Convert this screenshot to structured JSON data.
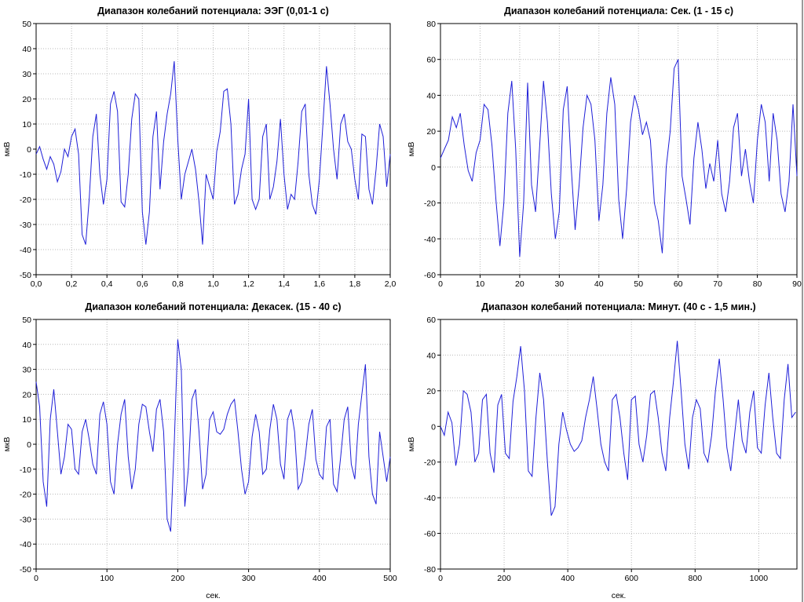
{
  "chart_data": [
    {
      "type": "line",
      "title": "Диапазон колебаний потенциала: ЭЭГ (0,01-1 с)",
      "ylabel": "мкВ",
      "xlabel": "",
      "xlim": [
        0,
        2.0
      ],
      "ylim": [
        -50,
        50
      ],
      "grid": true,
      "x_ticks": [
        "0,0",
        "0,2",
        "0,4",
        "0,6",
        "0,8",
        "1,0",
        "1,2",
        "1,4",
        "1,6",
        "1,8",
        "2,0"
      ],
      "y_ticks": [
        "-50",
        "-40",
        "-30",
        "-20",
        "-10",
        "0",
        "10",
        "20",
        "30",
        "40",
        "50"
      ],
      "series": [
        {
          "color": "#1f1fd8",
          "x": [
            0.0,
            0.02,
            0.04,
            0.06,
            0.08,
            0.1,
            0.12,
            0.14,
            0.16,
            0.18,
            0.2,
            0.22,
            0.24,
            0.26,
            0.28,
            0.3,
            0.32,
            0.34,
            0.36,
            0.38,
            0.4,
            0.42,
            0.44,
            0.46,
            0.48,
            0.5,
            0.52,
            0.54,
            0.56,
            0.58,
            0.6,
            0.62,
            0.64,
            0.66,
            0.68,
            0.7,
            0.72,
            0.74,
            0.76,
            0.78,
            0.8,
            0.82,
            0.84,
            0.86,
            0.88,
            0.9,
            0.92,
            0.94,
            0.96,
            0.98,
            1.0,
            1.02,
            1.04,
            1.06,
            1.08,
            1.1,
            1.12,
            1.14,
            1.16,
            1.18,
            1.2,
            1.22,
            1.24,
            1.26,
            1.28,
            1.3,
            1.32,
            1.34,
            1.36,
            1.38,
            1.4,
            1.42,
            1.44,
            1.46,
            1.48,
            1.5,
            1.52,
            1.54,
            1.56,
            1.58,
            1.6,
            1.62,
            1.64,
            1.66,
            1.68,
            1.7,
            1.72,
            1.74,
            1.76,
            1.78,
            1.8,
            1.82,
            1.84,
            1.86,
            1.88,
            1.9,
            1.92,
            1.94,
            1.96,
            1.98,
            2.0
          ],
          "values": [
            -2,
            1,
            -4,
            -8,
            -3,
            -6,
            -13,
            -9,
            0,
            -3,
            5,
            8,
            -2,
            -34,
            -38,
            -20,
            5,
            14,
            -10,
            -22,
            -12,
            18,
            23,
            15,
            -21,
            -23,
            -10,
            12,
            22,
            20,
            -25,
            -38,
            -25,
            5,
            15,
            -16,
            3,
            14,
            22,
            35,
            4,
            -20,
            -10,
            -5,
            0,
            -8,
            -21,
            -38,
            -10,
            -15,
            -20,
            -1,
            7,
            23,
            24,
            10,
            -22,
            -18,
            -8,
            -2,
            20,
            -20,
            -24,
            -20,
            5,
            10,
            -20,
            -15,
            -5,
            12,
            -10,
            -24,
            -18,
            -20,
            -5,
            15,
            18,
            -10,
            -22,
            -26,
            -12,
            10,
            33,
            18,
            0,
            -12,
            10,
            14,
            3,
            0,
            -12,
            -20,
            6,
            5,
            -16,
            -22,
            -8,
            10,
            5,
            -15,
            -2
          ]
        }
      ]
    },
    {
      "type": "line",
      "title": "Диапазон колебаний потенциала: Сек. (1 - 15 с)",
      "ylabel": "мкВ",
      "xlabel": "",
      "xlim": [
        0,
        90
      ],
      "ylim": [
        -60,
        80
      ],
      "grid": true,
      "x_ticks": [
        "0",
        "10",
        "20",
        "30",
        "40",
        "50",
        "60",
        "70",
        "80",
        "90"
      ],
      "y_ticks": [
        "-60",
        "-40",
        "-20",
        "0",
        "20",
        "40",
        "60",
        "80"
      ],
      "series": [
        {
          "color": "#1f1fd8",
          "x": [
            0,
            1,
            2,
            3,
            4,
            5,
            6,
            7,
            8,
            9,
            10,
            11,
            12,
            13,
            14,
            15,
            16,
            17,
            18,
            19,
            20,
            21,
            22,
            23,
            24,
            25,
            26,
            27,
            28,
            29,
            30,
            31,
            32,
            33,
            34,
            35,
            36,
            37,
            38,
            39,
            40,
            41,
            42,
            43,
            44,
            45,
            46,
            47,
            48,
            49,
            50,
            51,
            52,
            53,
            54,
            55,
            56,
            57,
            58,
            59,
            60,
            61,
            62,
            63,
            64,
            65,
            66,
            67,
            68,
            69,
            70,
            71,
            72,
            73,
            74,
            75,
            76,
            77,
            78,
            79,
            80,
            81,
            82,
            83,
            84,
            85,
            86,
            87,
            88,
            89,
            90
          ],
          "values": [
            5,
            10,
            15,
            28,
            22,
            30,
            12,
            -2,
            -8,
            8,
            15,
            35,
            32,
            12,
            -18,
            -44,
            -20,
            30,
            48,
            10,
            -50,
            -20,
            47,
            -10,
            -25,
            10,
            48,
            25,
            -15,
            -40,
            -25,
            32,
            45,
            0,
            -35,
            -10,
            22,
            40,
            35,
            15,
            -30,
            -10,
            30,
            50,
            35,
            -18,
            -40,
            -12,
            25,
            40,
            32,
            18,
            25,
            15,
            -20,
            -30,
            -48,
            0,
            20,
            55,
            60,
            -5,
            -18,
            -32,
            5,
            25,
            10,
            -12,
            2,
            -8,
            15,
            -15,
            -25,
            -8,
            22,
            30,
            -5,
            10,
            -8,
            -20,
            15,
            35,
            25,
            -8,
            30,
            15,
            -15,
            -25,
            -8,
            35,
            -5
          ]
        }
      ]
    },
    {
      "type": "line",
      "title": "Диапазон колебаний потенциала: Декасек. (15 - 40 с)",
      "ylabel": "мкВ",
      "xlabel": "сек.",
      "xlim": [
        0,
        500
      ],
      "ylim": [
        -50,
        50
      ],
      "grid": true,
      "x_ticks": [
        "0",
        "100",
        "200",
        "300",
        "400",
        "500"
      ],
      "y_ticks": [
        "-50",
        "-40",
        "-30",
        "-20",
        "-10",
        "0",
        "10",
        "20",
        "30",
        "40",
        "50"
      ],
      "series": [
        {
          "color": "#1f1fd8",
          "x": [
            0,
            5,
            10,
            15,
            20,
            25,
            30,
            35,
            40,
            45,
            50,
            55,
            60,
            65,
            70,
            75,
            80,
            85,
            90,
            95,
            100,
            105,
            110,
            115,
            120,
            125,
            130,
            135,
            140,
            145,
            150,
            155,
            160,
            165,
            170,
            175,
            180,
            185,
            190,
            195,
            200,
            205,
            210,
            215,
            220,
            225,
            230,
            235,
            240,
            245,
            250,
            255,
            260,
            265,
            270,
            275,
            280,
            285,
            290,
            295,
            300,
            305,
            310,
            315,
            320,
            325,
            330,
            335,
            340,
            345,
            350,
            355,
            360,
            365,
            370,
            375,
            380,
            385,
            390,
            395,
            400,
            405,
            410,
            415,
            420,
            425,
            430,
            435,
            440,
            445,
            450,
            455,
            460,
            465,
            470,
            475,
            480,
            485,
            490,
            495,
            500
          ],
          "values": [
            25,
            15,
            -15,
            -25,
            10,
            22,
            5,
            -12,
            -5,
            8,
            6,
            -10,
            -12,
            5,
            10,
            2,
            -8,
            -12,
            12,
            17,
            8,
            -15,
            -20,
            0,
            12,
            18,
            -5,
            -18,
            -10,
            8,
            16,
            15,
            5,
            -3,
            14,
            18,
            5,
            -30,
            -35,
            0,
            42,
            30,
            -25,
            -10,
            18,
            22,
            5,
            -18,
            -12,
            10,
            13,
            5,
            4,
            6,
            12,
            16,
            18,
            5,
            -10,
            -20,
            -15,
            3,
            12,
            5,
            -12,
            -10,
            6,
            16,
            10,
            -8,
            -14,
            10,
            14,
            5,
            -18,
            -15,
            -5,
            8,
            14,
            -6,
            -12,
            -14,
            7,
            10,
            -16,
            -19,
            -5,
            10,
            15,
            -8,
            -14,
            8,
            20,
            32,
            -5,
            -20,
            -24,
            5,
            -5,
            -15,
            -5
          ]
        }
      ]
    },
    {
      "type": "line",
      "title": "Диапазон колебаний потенциала: Минут. (40 с - 1,5 мин.)",
      "ylabel": "мкВ",
      "xlabel": "сек.",
      "xlim": [
        0,
        1120
      ],
      "ylim": [
        -80,
        60
      ],
      "grid": true,
      "x_ticks": [
        "0",
        "200",
        "400",
        "600",
        "800",
        "1000"
      ],
      "y_ticks": [
        "-80",
        "-60",
        "-40",
        "-20",
        "0",
        "20",
        "40",
        "60"
      ],
      "series": [
        {
          "color": "#1f1fd8",
          "x": [
            0,
            12,
            24,
            36,
            48,
            60,
            72,
            84,
            96,
            108,
            120,
            132,
            144,
            156,
            168,
            180,
            192,
            204,
            216,
            228,
            240,
            252,
            264,
            276,
            288,
            300,
            312,
            324,
            336,
            348,
            360,
            372,
            384,
            396,
            408,
            420,
            432,
            444,
            456,
            468,
            480,
            492,
            504,
            516,
            528,
            540,
            552,
            564,
            576,
            588,
            600,
            612,
            624,
            636,
            648,
            660,
            672,
            684,
            696,
            708,
            720,
            732,
            744,
            756,
            768,
            780,
            792,
            804,
            816,
            828,
            840,
            852,
            864,
            876,
            888,
            900,
            912,
            924,
            936,
            948,
            960,
            972,
            984,
            996,
            1008,
            1020,
            1032,
            1044,
            1056,
            1068,
            1080,
            1092,
            1104,
            1116
          ],
          "values": [
            0,
            -5,
            8,
            2,
            -22,
            -10,
            20,
            18,
            8,
            -20,
            -15,
            15,
            18,
            -15,
            -26,
            12,
            18,
            -15,
            -18,
            14,
            28,
            45,
            20,
            -25,
            -28,
            5,
            30,
            15,
            -20,
            -50,
            -45,
            -10,
            8,
            -2,
            -10,
            -14,
            -12,
            -8,
            5,
            15,
            28,
            10,
            -10,
            -20,
            -25,
            15,
            18,
            5,
            -15,
            -30,
            15,
            17,
            -10,
            -20,
            -5,
            18,
            20,
            5,
            -15,
            -25,
            5,
            25,
            48,
            20,
            -10,
            -24,
            5,
            15,
            10,
            -15,
            -20,
            -5,
            20,
            38,
            15,
            -12,
            -25,
            -5,
            15,
            -8,
            -15,
            8,
            20,
            -12,
            -15,
            12,
            30,
            5,
            -15,
            -18,
            15,
            35,
            5,
            8
          ]
        }
      ]
    }
  ]
}
